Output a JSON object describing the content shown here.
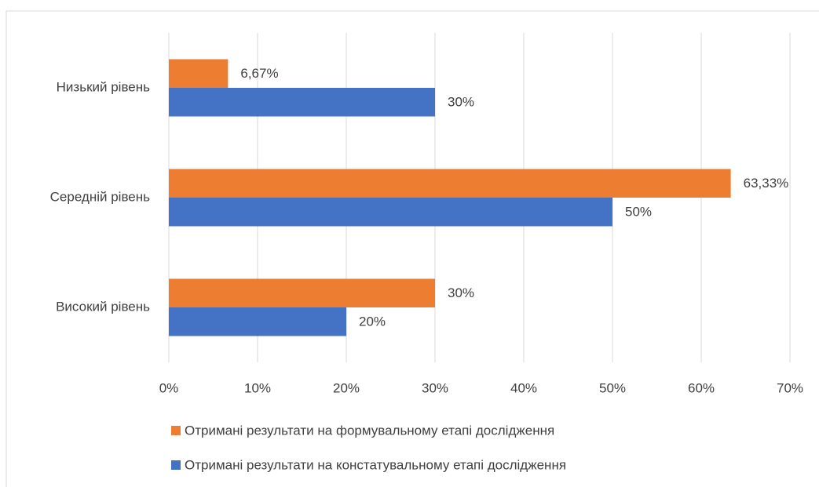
{
  "chart_data": {
    "type": "bar",
    "orientation": "horizontal",
    "categories": [
      "Низький рівень",
      "Середній рівень",
      "Високий рівень"
    ],
    "series": [
      {
        "name": "Отримані результати на формувальному етапі дослідження",
        "color": "#ed7d31",
        "values": [
          6.67,
          63.33,
          30
        ],
        "value_labels": [
          "6,67%",
          "63,33%",
          "30%"
        ]
      },
      {
        "name": "Отримані результати на констатувальному етапі дослідження",
        "color": "#4472c4",
        "values": [
          30,
          50,
          20
        ],
        "value_labels": [
          "30%",
          "50%",
          "20%"
        ]
      }
    ],
    "xlim": [
      0,
      70
    ],
    "xticks": [
      {
        "value": 0,
        "label": "0%"
      },
      {
        "value": 10,
        "label": "10%"
      },
      {
        "value": 20,
        "label": "20%"
      },
      {
        "value": 30,
        "label": "30%"
      },
      {
        "value": 40,
        "label": "40%"
      },
      {
        "value": 50,
        "label": "50%"
      },
      {
        "value": 60,
        "label": "60%"
      },
      {
        "value": 70,
        "label": "70%"
      }
    ],
    "grid": true,
    "legend": "bottom"
  }
}
